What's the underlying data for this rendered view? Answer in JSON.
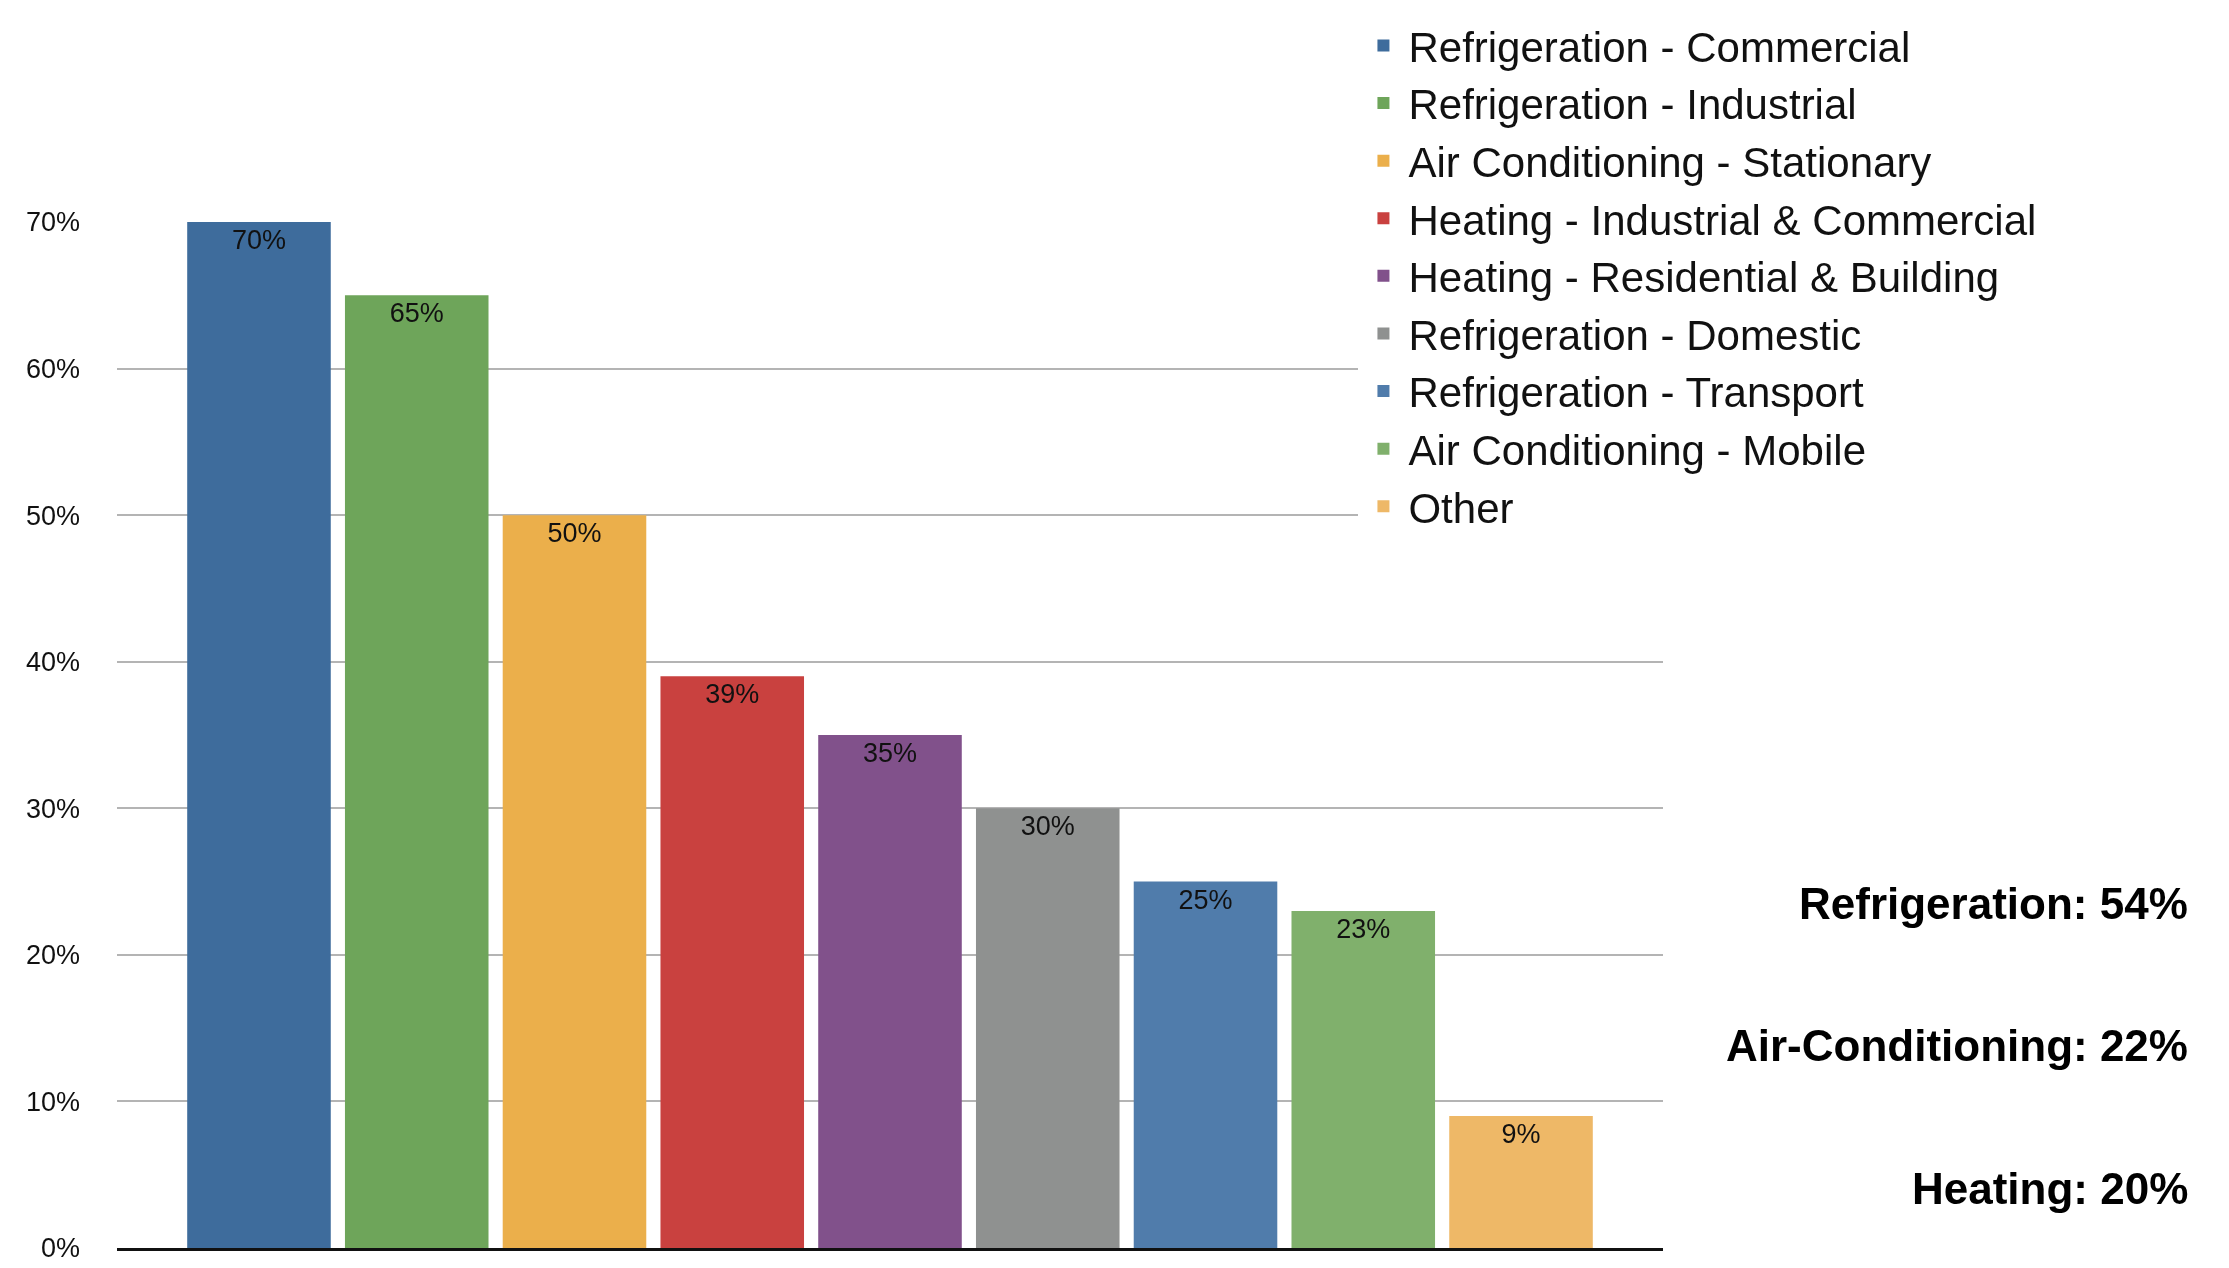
{
  "chart_data": {
    "type": "bar",
    "categories": [
      null,
      null,
      null,
      null,
      null,
      null,
      null,
      null,
      null
    ],
    "series": [
      {
        "name": "Refrigeration - Commercial",
        "color": "#3e6c9c",
        "values": [
          70,
          null,
          null,
          null,
          null,
          null,
          null,
          null,
          null
        ],
        "value_labels": [
          "70%",
          null,
          null,
          null,
          null,
          null,
          null,
          null,
          null
        ]
      },
      {
        "name": "Refrigeration - Industrial",
        "color": "#6ea55a",
        "values": [
          null,
          65,
          null,
          null,
          null,
          null,
          null,
          null,
          null
        ],
        "value_labels": [
          null,
          "65%",
          null,
          null,
          null,
          null,
          null,
          null,
          null
        ]
      },
      {
        "name": "Air Conditioning - Stationary",
        "color": "#ebaf4b",
        "values": [
          null,
          null,
          50,
          null,
          null,
          null,
          null,
          null,
          null
        ],
        "value_labels": [
          null,
          null,
          "50%",
          null,
          null,
          null,
          null,
          null,
          null
        ]
      },
      {
        "name": "Heating - Industrial & Commercial",
        "color": "#c9413f",
        "values": [
          null,
          null,
          null,
          39,
          null,
          null,
          null,
          null,
          null
        ],
        "value_labels": [
          null,
          null,
          null,
          "39%",
          null,
          null,
          null,
          null,
          null
        ]
      },
      {
        "name": "Heating - Residential & Building",
        "color": "#81518b",
        "values": [
          null,
          null,
          null,
          null,
          35,
          null,
          null,
          null,
          null
        ],
        "value_labels": [
          null,
          null,
          null,
          null,
          "35%",
          null,
          null,
          null,
          null
        ]
      },
      {
        "name": "Refrigeration - Domestic",
        "color": "#8f9190",
        "values": [
          null,
          null,
          null,
          null,
          null,
          30,
          null,
          null,
          null
        ],
        "value_labels": [
          null,
          null,
          null,
          null,
          null,
          "30%",
          null,
          null,
          null
        ]
      },
      {
        "name": "Refrigeration - Transport",
        "color": "#507cab",
        "values": [
          null,
          null,
          null,
          null,
          null,
          null,
          25,
          null,
          null
        ],
        "value_labels": [
          null,
          null,
          null,
          null,
          null,
          null,
          "25%",
          null,
          null
        ]
      },
      {
        "name": "Air Conditioning - Mobile",
        "color": "#80b06c",
        "values": [
          null,
          null,
          null,
          null,
          null,
          null,
          null,
          23,
          null
        ],
        "value_labels": [
          null,
          null,
          null,
          null,
          null,
          null,
          null,
          "23%",
          null
        ]
      },
      {
        "name": "Other",
        "color": "#eeb867",
        "values": [
          null,
          null,
          null,
          null,
          null,
          null,
          null,
          null,
          9
        ],
        "value_labels": [
          null,
          null,
          null,
          null,
          null,
          null,
          null,
          null,
          "9%"
        ]
      }
    ],
    "ylim": [
      0,
      70
    ],
    "yticks": [
      {
        "value": 0,
        "label": "0%"
      },
      {
        "value": 10,
        "label": "10%"
      },
      {
        "value": 20,
        "label": "20%"
      },
      {
        "value": 30,
        "label": "30%"
      },
      {
        "value": 40,
        "label": "40%"
      },
      {
        "value": 50,
        "label": "50%"
      },
      {
        "value": 60,
        "label": "60%"
      },
      {
        "value": 70,
        "label": "70%"
      }
    ],
    "grid": "y",
    "legend": "top right",
    "annotations": [
      "Refrigeration: 54%",
      "Air-Conditioning: 22%",
      "Heating: 20%"
    ]
  }
}
